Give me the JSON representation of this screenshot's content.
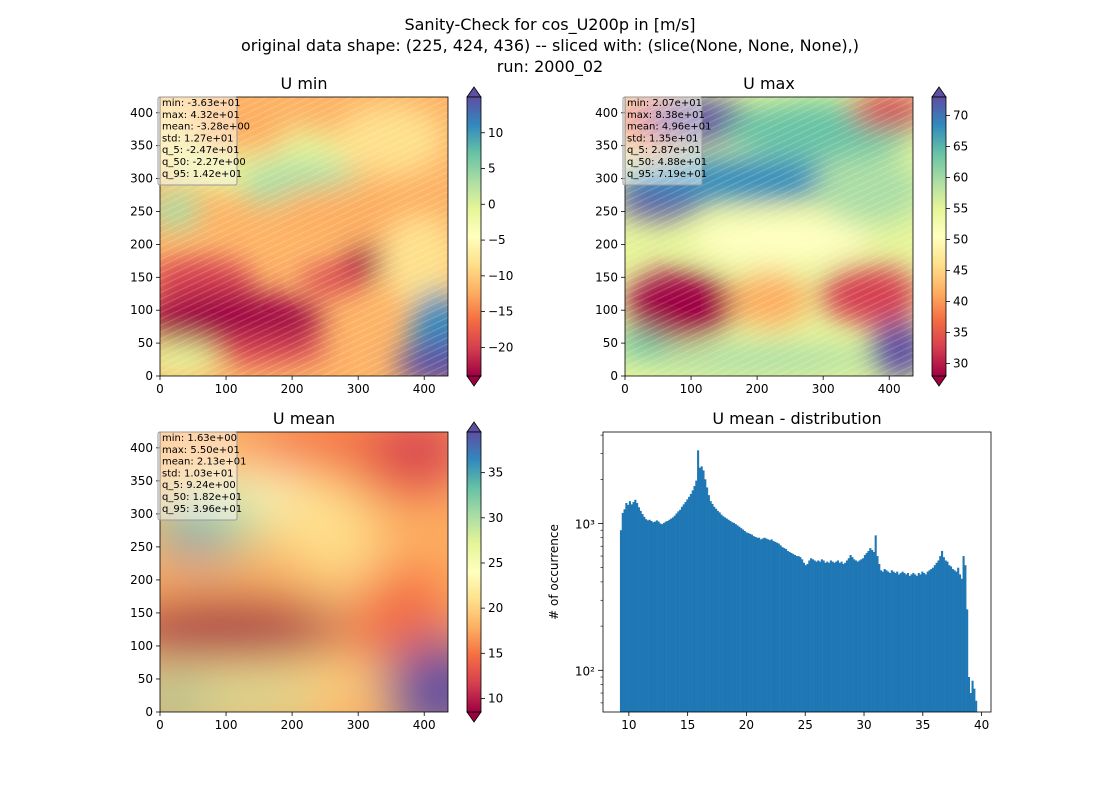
{
  "figure": {
    "title_lines": [
      "Sanity-Check for cos_U200p in [m/s]",
      "original data shape: (225, 424, 436) -- sliced with: (slice(None, None, None),)",
      "run: 2000_02"
    ]
  },
  "colors": {
    "cmap_spectral": [
      "#9e0142",
      "#d53e4f",
      "#f46d43",
      "#fdae61",
      "#fee08b",
      "#ffffbf",
      "#e6f598",
      "#abdda4",
      "#66c2a5",
      "#3288bd",
      "#5e4fa2"
    ],
    "hist_bar": "#1f77b4"
  },
  "chart_data": [
    {
      "type": "heatmap",
      "title": "U min",
      "xlim": [
        0,
        436
      ],
      "ylim": [
        0,
        424
      ],
      "xticks": [
        0,
        100,
        200,
        300,
        400
      ],
      "yticks": [
        0,
        50,
        100,
        150,
        200,
        250,
        300,
        350,
        400
      ],
      "colorbar": {
        "min": -24,
        "max": 15,
        "extend": "both",
        "ticks": [
          -20,
          -15,
          -10,
          -5,
          0,
          5,
          10
        ]
      },
      "stats": [
        "min: -3.63e+01",
        "max: 4.32e+01",
        "mean: -3.28e+00",
        "std: 1.27e+01",
        "q_5: -2.47e+01",
        "q_50: -2.27e+00",
        "q_95: 1.42e+01"
      ]
    },
    {
      "type": "heatmap",
      "title": "U max",
      "xlim": [
        0,
        436
      ],
      "ylim": [
        0,
        424
      ],
      "xticks": [
        0,
        100,
        200,
        300,
        400
      ],
      "yticks": [
        0,
        50,
        100,
        150,
        200,
        250,
        300,
        350,
        400
      ],
      "colorbar": {
        "min": 28,
        "max": 73,
        "extend": "both",
        "ticks": [
          30,
          35,
          40,
          45,
          50,
          55,
          60,
          65,
          70
        ]
      },
      "stats": [
        "min: 2.07e+01",
        "max: 8.38e+01",
        "mean: 4.96e+01",
        "std: 1.35e+01",
        "q_5: 2.87e+01",
        "q_50: 4.88e+01",
        "q_95: 7.19e+01"
      ]
    },
    {
      "type": "heatmap",
      "title": "U mean",
      "xlim": [
        0,
        436
      ],
      "ylim": [
        0,
        424
      ],
      "xticks": [
        0,
        100,
        200,
        300,
        400
      ],
      "yticks": [
        0,
        50,
        100,
        150,
        200,
        250,
        300,
        350,
        400
      ],
      "colorbar": {
        "min": 8.5,
        "max": 39.5,
        "extend": "both",
        "ticks": [
          10,
          15,
          20,
          25,
          30,
          35
        ]
      },
      "stats": [
        "min: 1.63e+00",
        "max: 5.50e+01",
        "mean: 2.13e+01",
        "std: 1.03e+01",
        "q_5: 9.24e+00",
        "q_50: 1.82e+01",
        "q_95: 3.96e+01"
      ]
    },
    {
      "type": "bar",
      "title": "U mean - distribution",
      "ylabel": "# of occurrence",
      "yscale": "log",
      "xlim": [
        7.8,
        40.8
      ],
      "ylim": [
        52,
        4200
      ],
      "xticks": [
        10,
        15,
        20,
        25,
        30,
        35,
        40
      ],
      "yticks": [
        100,
        1000
      ],
      "ytick_labels": [
        "10²",
        "10³"
      ],
      "bin_start": 9.24,
      "bin_end": 39.6,
      "values": [
        900,
        1180,
        1250,
        1380,
        1340,
        1420,
        1350,
        1400,
        1450,
        1380,
        1290,
        1220,
        1160,
        1110,
        1070,
        1050,
        1060,
        1040,
        1020,
        1030,
        1050,
        1030,
        1000,
        990,
        1010,
        1030,
        1040,
        1060,
        1080,
        1100,
        1130,
        1170,
        1210,
        1240,
        1300,
        1350,
        1400,
        1460,
        1520,
        1590,
        1680,
        1800,
        1960,
        3150,
        2400,
        2450,
        2300,
        2000,
        1760,
        1560,
        1420,
        1360,
        1300,
        1260,
        1220,
        1190,
        1150,
        1120,
        1100,
        1080,
        1060,
        1040,
        1020,
        1010,
        990,
        970,
        950,
        930,
        910,
        890,
        870,
        860,
        850,
        840,
        820,
        810,
        800,
        800,
        780,
        790,
        800,
        790,
        780,
        770,
        780,
        760,
        750,
        740,
        730,
        710,
        690,
        680,
        670,
        650,
        640,
        630,
        620,
        610,
        600,
        600,
        590,
        570,
        540,
        520,
        530,
        560,
        580,
        570,
        560,
        550,
        560,
        550,
        570,
        560,
        540,
        550,
        540,
        560,
        550,
        540,
        550,
        560,
        540,
        550,
        530,
        540,
        560,
        580,
        610,
        590,
        570,
        560,
        550,
        560,
        570,
        580,
        610,
        630,
        650,
        680,
        660,
        640,
        830,
        600,
        530,
        480,
        470,
        490,
        480,
        470,
        460,
        480,
        470,
        460,
        470,
        450,
        460,
        470,
        460,
        450,
        460,
        440,
        450,
        460,
        450,
        440,
        460,
        450,
        470,
        460,
        450,
        470,
        480,
        490,
        500,
        520,
        540,
        560,
        600,
        650,
        590,
        560,
        550,
        520,
        510,
        490,
        480,
        470,
        500,
        450,
        420,
        600,
        520,
        260,
        90,
        70,
        85,
        75,
        62
      ]
    }
  ]
}
